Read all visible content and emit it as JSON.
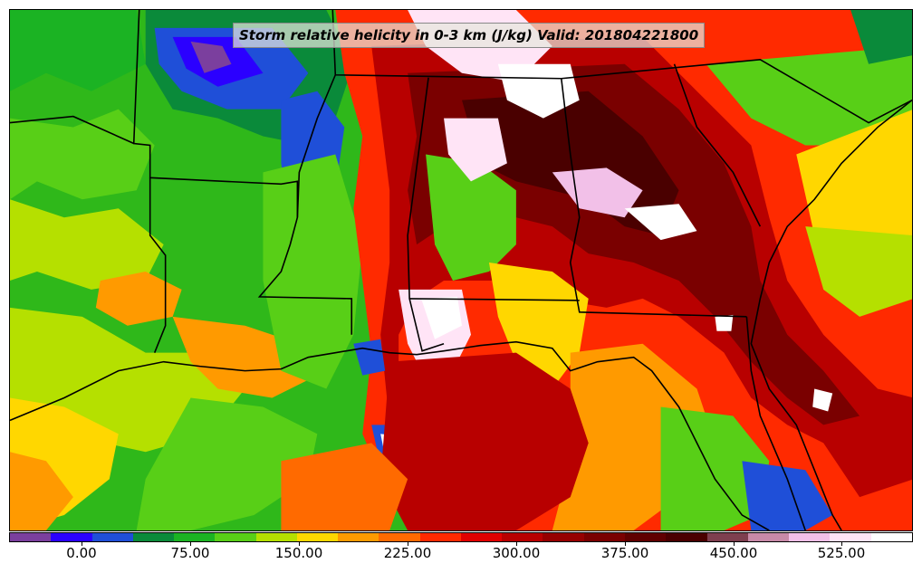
{
  "title": "Storm relative helicity in 0-3 km (J/kg) Valid: 201804221800",
  "colorbar": {
    "colors": [
      "#7b3f9e",
      "#2b00ff",
      "#1f4fd8",
      "#0a8a3a",
      "#1bb323",
      "#58cf17",
      "#b5e000",
      "#ffd700",
      "#ff9a00",
      "#ff6a00",
      "#ff2a00",
      "#e00000",
      "#b80000",
      "#960000",
      "#7a0000",
      "#600000",
      "#4a0000",
      "#7e3f4f",
      "#c88aa8",
      "#f2c0e8",
      "#ffe4f6",
      "#ffffff"
    ],
    "tick_labels": [
      "0.00",
      "75.00",
      "150.00",
      "225.00",
      "300.00",
      "375.00",
      "450.00",
      "525.00"
    ]
  }
}
